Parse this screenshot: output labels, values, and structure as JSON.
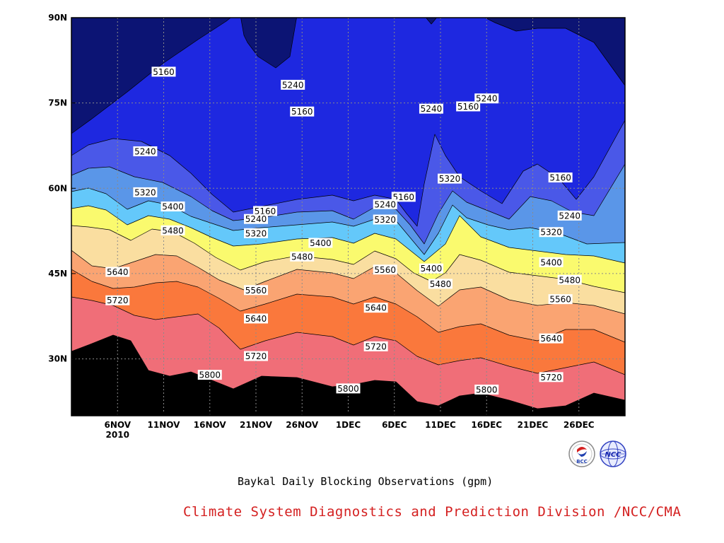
{
  "chart_data": {
    "type": "contour",
    "title": "Baykal Daily Blocking Observations (gpm)",
    "x_axis": {
      "ticks": [
        "6NOV",
        "11NOV",
        "16NOV",
        "21NOV",
        "26NOV",
        "1DEC",
        "6DEC",
        "11DEC",
        "16DEC",
        "21DEC",
        "26DEC"
      ],
      "year_label": "2010",
      "range": [
        "1NOV2010",
        "31DEC2010"
      ]
    },
    "y_axis": {
      "ticks": [
        "30N",
        "45N",
        "60N",
        "75N",
        "90N"
      ],
      "range": [
        20,
        90
      ]
    },
    "levels": [
      5160,
      5240,
      5320,
      5400,
      5480,
      5560,
      5640,
      5720,
      5800
    ],
    "level_colors": [
      "#0c1474",
      "#1e28e0",
      "#4a58e8",
      "#5a96e8",
      "#64c8fa",
      "#fafa6e",
      "#fadea0",
      "#faa472",
      "#fa783c",
      "#f06e78"
    ],
    "contour_labels": [
      {
        "text": "5160",
        "date": "11NOV",
        "lat": 80.5
      },
      {
        "text": "5240",
        "date": "9NOV",
        "lat": 66.5
      },
      {
        "text": "5320",
        "date": "9NOV",
        "lat": 59.3
      },
      {
        "text": "5400",
        "date": "12NOV",
        "lat": 56.8
      },
      {
        "text": "5480",
        "date": "12NOV",
        "lat": 52.6
      },
      {
        "text": "5640",
        "date": "6NOV",
        "lat": 45.3
      },
      {
        "text": "5720",
        "date": "6NOV",
        "lat": 40.3
      },
      {
        "text": "5800",
        "date": "16NOV",
        "lat": 27.2
      },
      {
        "text": "5240",
        "date": "25NOV",
        "lat": 78.2
      },
      {
        "text": "5160",
        "date": "26NOV",
        "lat": 73.5
      },
      {
        "text": "5160",
        "date": "22NOV",
        "lat": 56.0
      },
      {
        "text": "5240",
        "date": "21NOV",
        "lat": 54.6
      },
      {
        "text": "5320",
        "date": "21NOV",
        "lat": 52.1
      },
      {
        "text": "5400",
        "date": "28NOV",
        "lat": 50.4
      },
      {
        "text": "5480",
        "date": "26NOV",
        "lat": 48.0
      },
      {
        "text": "5560",
        "date": "21NOV",
        "lat": 42.1
      },
      {
        "text": "5640",
        "date": "21NOV",
        "lat": 37.1
      },
      {
        "text": "5720",
        "date": "21NOV",
        "lat": 30.5
      },
      {
        "text": "5800",
        "date": "1DEC",
        "lat": 24.8
      },
      {
        "text": "5160",
        "date": "7DEC",
        "lat": 58.5
      },
      {
        "text": "5240",
        "date": "5DEC",
        "lat": 57.2
      },
      {
        "text": "5320",
        "date": "5DEC",
        "lat": 54.5
      },
      {
        "text": "5560",
        "date": "5DEC",
        "lat": 45.7
      },
      {
        "text": "5640",
        "date": "4DEC",
        "lat": 39.0
      },
      {
        "text": "5720",
        "date": "4DEC",
        "lat": 32.2
      },
      {
        "text": "5240",
        "date": "10DEC",
        "lat": 74.0
      },
      {
        "text": "5160",
        "date": "14DEC",
        "lat": 74.4
      },
      {
        "text": "5240",
        "date": "16DEC",
        "lat": 75.8
      },
      {
        "text": "5320",
        "date": "12DEC",
        "lat": 61.7
      },
      {
        "text": "5400",
        "date": "10DEC",
        "lat": 45.9
      },
      {
        "text": "5480",
        "date": "11DEC",
        "lat": 43.2
      },
      {
        "text": "5800",
        "date": "16DEC",
        "lat": 24.6
      },
      {
        "text": "5160",
        "date": "24DEC",
        "lat": 61.9
      },
      {
        "text": "5240",
        "date": "25DEC",
        "lat": 55.2
      },
      {
        "text": "5320",
        "date": "23DEC",
        "lat": 52.3
      },
      {
        "text": "5400",
        "date": "23DEC",
        "lat": 47.0
      },
      {
        "text": "5480",
        "date": "25DEC",
        "lat": 43.9
      },
      {
        "text": "5560",
        "date": "24DEC",
        "lat": 40.5
      },
      {
        "text": "5640",
        "date": "23DEC",
        "lat": 33.6
      },
      {
        "text": "5720",
        "date": "23DEC",
        "lat": 26.8
      }
    ],
    "grid": true
  },
  "footer": {
    "credit": "Climate System Diagnostics and Prediction Division /NCC/CMA",
    "logo_left_text": "BCC",
    "logo_right_text": "NCC"
  }
}
